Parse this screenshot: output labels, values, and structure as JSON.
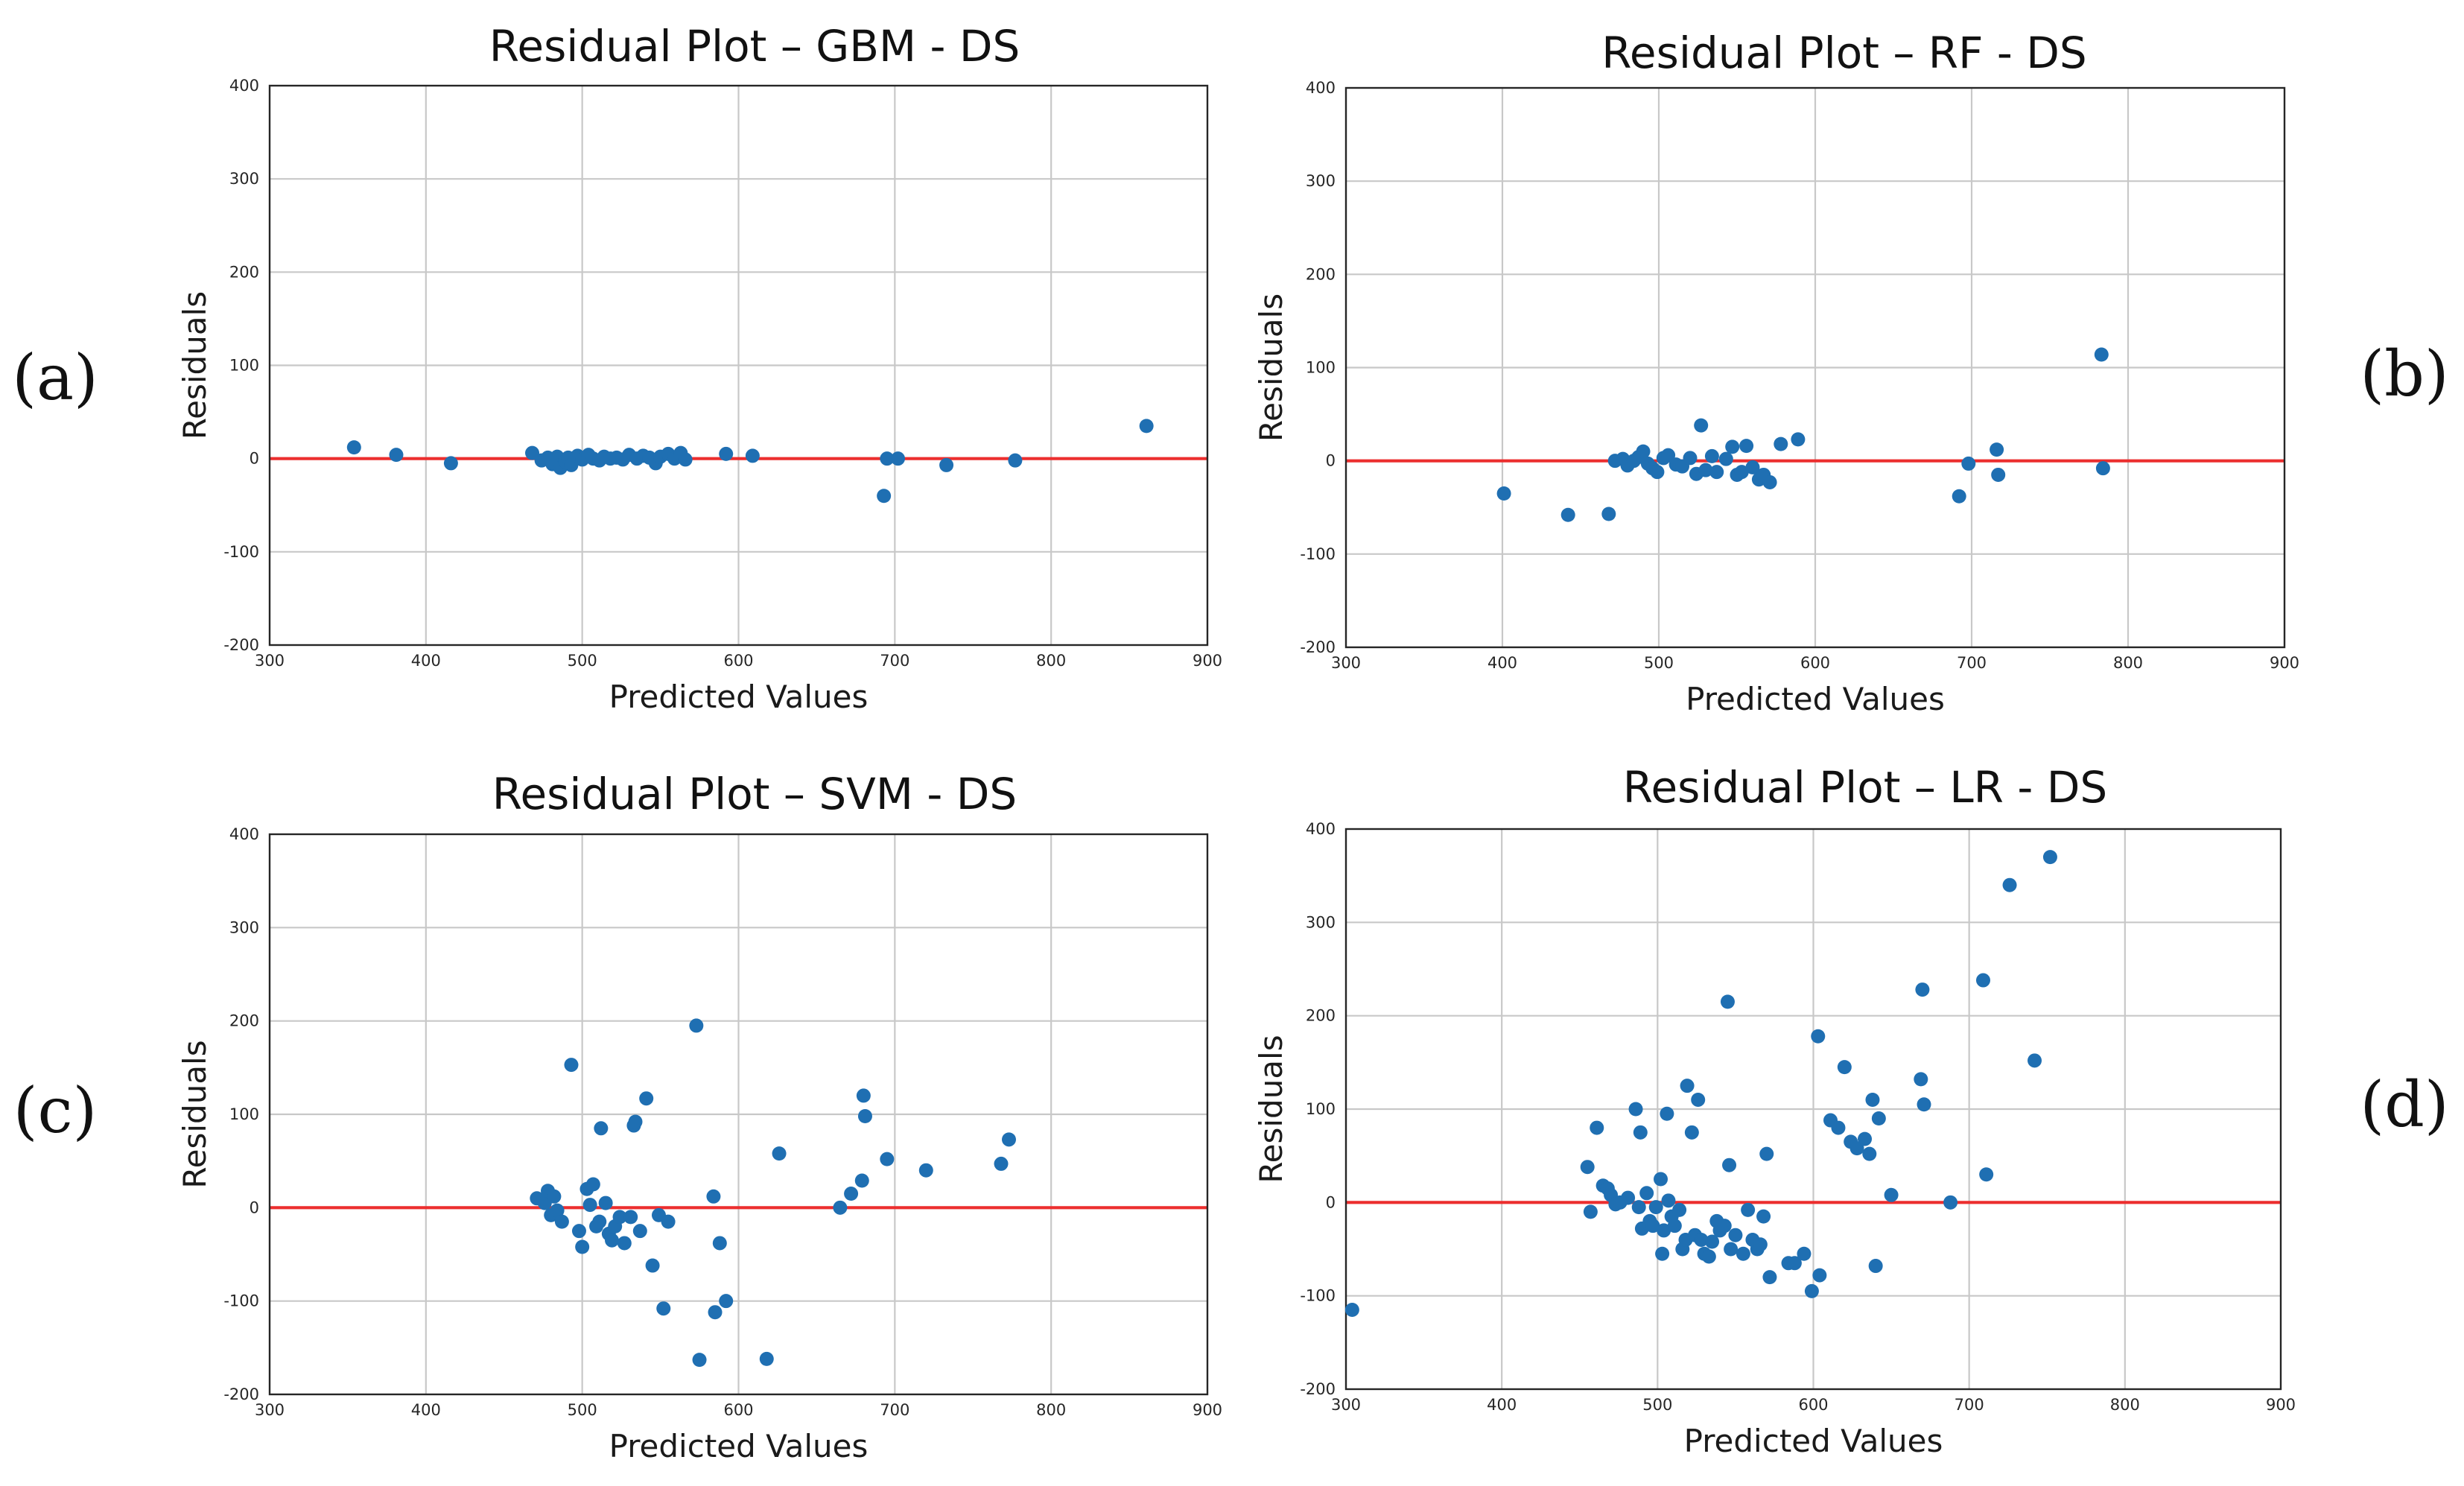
{
  "figure": {
    "panel_labels": [
      "(a)",
      "(b)",
      "(c)",
      "(d)"
    ],
    "colors": {
      "points": "#1f6fb2",
      "zero_line": "#ec2e2e",
      "grid": "#c8c8c8",
      "frame": "#262626"
    }
  },
  "chart_data": [
    {
      "id": "a",
      "type": "scatter",
      "title": "Residual Plot – GBM - DS",
      "xlabel": "Predicted Values",
      "ylabel": "Residuals",
      "xlim": [
        300,
        900
      ],
      "ylim": [
        -200,
        400
      ],
      "xticks": [
        300,
        400,
        500,
        600,
        700,
        800,
        900
      ],
      "yticks": [
        -200,
        -100,
        0,
        100,
        200,
        300,
        400
      ],
      "grid": true,
      "reference_line": 0,
      "points": [
        [
          354,
          12
        ],
        [
          381,
          4
        ],
        [
          416,
          -5
        ],
        [
          468,
          6
        ],
        [
          474,
          -2
        ],
        [
          478,
          1
        ],
        [
          481,
          -6
        ],
        [
          484,
          2
        ],
        [
          486,
          -10
        ],
        [
          489,
          -3
        ],
        [
          491,
          1
        ],
        [
          493,
          -7
        ],
        [
          497,
          3
        ],
        [
          500,
          -1
        ],
        [
          504,
          4
        ],
        [
          507,
          0
        ],
        [
          511,
          -2
        ],
        [
          514,
          2
        ],
        [
          518,
          0
        ],
        [
          522,
          1
        ],
        [
          526,
          -1
        ],
        [
          530,
          4
        ],
        [
          535,
          0
        ],
        [
          539,
          3
        ],
        [
          543,
          1
        ],
        [
          547,
          -5
        ],
        [
          550,
          2
        ],
        [
          555,
          5
        ],
        [
          559,
          0
        ],
        [
          563,
          6
        ],
        [
          566,
          -1
        ],
        [
          592,
          5
        ],
        [
          609,
          3
        ],
        [
          693,
          -40
        ],
        [
          695,
          0
        ],
        [
          702,
          0
        ],
        [
          733,
          -7
        ],
        [
          777,
          -2
        ],
        [
          861,
          35
        ]
      ]
    },
    {
      "id": "b",
      "type": "scatter",
      "title": "Residual Plot – RF - DS",
      "xlabel": "Predicted Values",
      "ylabel": "Residuals",
      "xlim": [
        300,
        900
      ],
      "ylim": [
        -200,
        400
      ],
      "xticks": [
        300,
        400,
        500,
        600,
        700,
        800,
        900
      ],
      "yticks": [
        -200,
        -100,
        0,
        100,
        200,
        300,
        400
      ],
      "grid": true,
      "reference_line": 0,
      "points": [
        [
          401,
          -35
        ],
        [
          442,
          -58
        ],
        [
          468,
          -57
        ],
        [
          472,
          0
        ],
        [
          477,
          2
        ],
        [
          480,
          -5
        ],
        [
          484,
          0
        ],
        [
          487,
          4
        ],
        [
          490,
          10
        ],
        [
          493,
          -3
        ],
        [
          496,
          -8
        ],
        [
          499,
          -12
        ],
        [
          503,
          3
        ],
        [
          506,
          6
        ],
        [
          511,
          -4
        ],
        [
          515,
          -6
        ],
        [
          520,
          3
        ],
        [
          524,
          -14
        ],
        [
          527,
          38
        ],
        [
          530,
          -10
        ],
        [
          534,
          5
        ],
        [
          537,
          -12
        ],
        [
          543,
          2
        ],
        [
          547,
          15
        ],
        [
          550,
          -15
        ],
        [
          553,
          -12
        ],
        [
          556,
          16
        ],
        [
          560,
          -7
        ],
        [
          564,
          -20
        ],
        [
          567,
          -15
        ],
        [
          571,
          -23
        ],
        [
          578,
          18
        ],
        [
          589,
          23
        ],
        [
          692,
          -38
        ],
        [
          698,
          -3
        ],
        [
          716,
          12
        ],
        [
          717,
          -15
        ],
        [
          783,
          114
        ],
        [
          784,
          -8
        ]
      ]
    },
    {
      "id": "c",
      "type": "scatter",
      "title": "Residual Plot – SVM - DS",
      "xlabel": "Predicted Values",
      "ylabel": "Residuals",
      "xlim": [
        300,
        900
      ],
      "ylim": [
        -200,
        400
      ],
      "xticks": [
        300,
        400,
        500,
        600,
        700,
        800,
        900
      ],
      "yticks": [
        -200,
        -100,
        0,
        100,
        200,
        300,
        400
      ],
      "grid": true,
      "reference_line": 0,
      "points": [
        [
          471,
          10
        ],
        [
          476,
          5
        ],
        [
          478,
          18
        ],
        [
          480,
          -8
        ],
        [
          482,
          12
        ],
        [
          484,
          -3
        ],
        [
          487,
          -15
        ],
        [
          493,
          153
        ],
        [
          498,
          -25
        ],
        [
          500,
          -42
        ],
        [
          503,
          20
        ],
        [
          505,
          3
        ],
        [
          507,
          25
        ],
        [
          509,
          -20
        ],
        [
          511,
          -15
        ],
        [
          512,
          85
        ],
        [
          515,
          5
        ],
        [
          517,
          -28
        ],
        [
          519,
          -35
        ],
        [
          521,
          -20
        ],
        [
          524,
          -10
        ],
        [
          527,
          -38
        ],
        [
          531,
          -10
        ],
        [
          533,
          88
        ],
        [
          534,
          92
        ],
        [
          537,
          -25
        ],
        [
          541,
          117
        ],
        [
          545,
          -62
        ],
        [
          549,
          -8
        ],
        [
          552,
          -108
        ],
        [
          555,
          -15
        ],
        [
          573,
          195
        ],
        [
          575,
          -163
        ],
        [
          584,
          12
        ],
        [
          585,
          -112
        ],
        [
          588,
          -38
        ],
        [
          592,
          -100
        ],
        [
          618,
          -162
        ],
        [
          626,
          58
        ],
        [
          665,
          0
        ],
        [
          672,
          15
        ],
        [
          679,
          29
        ],
        [
          680,
          120
        ],
        [
          681,
          98
        ],
        [
          695,
          52
        ],
        [
          720,
          40
        ],
        [
          768,
          47
        ],
        [
          773,
          73
        ]
      ]
    },
    {
      "id": "d",
      "type": "scatter",
      "title": "Residual Plot – LR - DS",
      "xlabel": "Predicted Values",
      "ylabel": "Residuals",
      "xlim": [
        300,
        900
      ],
      "ylim": [
        -200,
        400
      ],
      "xticks": [
        300,
        400,
        500,
        600,
        700,
        800,
        900
      ],
      "yticks": [
        -200,
        -100,
        0,
        100,
        200,
        300,
        400
      ],
      "grid": true,
      "reference_line": 0,
      "points": [
        [
          304,
          -115
        ],
        [
          455,
          38
        ],
        [
          457,
          -10
        ],
        [
          461,
          80
        ],
        [
          465,
          18
        ],
        [
          468,
          15
        ],
        [
          470,
          8
        ],
        [
          473,
          -2
        ],
        [
          476,
          0
        ],
        [
          481,
          5
        ],
        [
          486,
          100
        ],
        [
          488,
          -5
        ],
        [
          489,
          75
        ],
        [
          490,
          -28
        ],
        [
          493,
          10
        ],
        [
          495,
          -20
        ],
        [
          497,
          -25
        ],
        [
          499,
          -5
        ],
        [
          502,
          25
        ],
        [
          503,
          -55
        ],
        [
          504,
          -30
        ],
        [
          506,
          95
        ],
        [
          507,
          2
        ],
        [
          509,
          -15
        ],
        [
          511,
          -25
        ],
        [
          514,
          -8
        ],
        [
          516,
          -50
        ],
        [
          518,
          -40
        ],
        [
          519,
          125
        ],
        [
          522,
          75
        ],
        [
          524,
          -35
        ],
        [
          526,
          110
        ],
        [
          528,
          -40
        ],
        [
          530,
          -55
        ],
        [
          533,
          -58
        ],
        [
          535,
          -42
        ],
        [
          538,
          -20
        ],
        [
          540,
          -30
        ],
        [
          543,
          -25
        ],
        [
          545,
          215
        ],
        [
          546,
          40
        ],
        [
          547,
          -50
        ],
        [
          550,
          -35
        ],
        [
          555,
          -55
        ],
        [
          558,
          -8
        ],
        [
          561,
          -40
        ],
        [
          564,
          -50
        ],
        [
          566,
          -45
        ],
        [
          568,
          -15
        ],
        [
          570,
          52
        ],
        [
          572,
          -80
        ],
        [
          584,
          -65
        ],
        [
          588,
          -65
        ],
        [
          594,
          -55
        ],
        [
          599,
          -95
        ],
        [
          603,
          178
        ],
        [
          604,
          -78
        ],
        [
          611,
          88
        ],
        [
          616,
          80
        ],
        [
          620,
          145
        ],
        [
          624,
          65
        ],
        [
          628,
          58
        ],
        [
          633,
          68
        ],
        [
          636,
          52
        ],
        [
          638,
          110
        ],
        [
          640,
          -68
        ],
        [
          642,
          90
        ],
        [
          650,
          8
        ],
        [
          669,
          132
        ],
        [
          670,
          228
        ],
        [
          671,
          105
        ],
        [
          688,
          0
        ],
        [
          709,
          238
        ],
        [
          711,
          30
        ],
        [
          726,
          340
        ],
        [
          742,
          152
        ],
        [
          752,
          370
        ]
      ]
    }
  ]
}
